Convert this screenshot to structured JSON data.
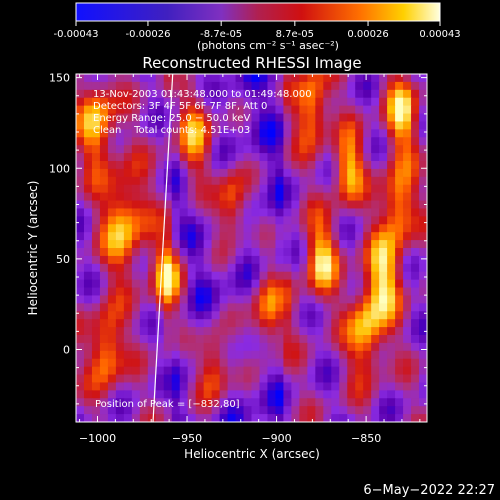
{
  "colorbar": {
    "tick_labels": [
      "-0.00043",
      "-0.00026",
      "-8.7e-05",
      "8.7e-05",
      "0.00026",
      "0.00043"
    ],
    "tick_values": [
      -0.00043,
      -0.00026,
      -8.7e-05,
      8.7e-05,
      0.00026,
      0.00043
    ],
    "range": [
      -0.00043,
      0.00043
    ],
    "unit_label": "(photons cm⁻² s⁻¹ asec⁻²)"
  },
  "chart_data": {
    "type": "heatmap",
    "title": "Reconstructed RHESSI Image",
    "xlabel": "Heliocentric X (arcsec)",
    "ylabel": "Heliocentric Y (arcsec)",
    "xlim": [
      -1012,
      -816
    ],
    "ylim": [
      -40,
      152
    ],
    "x_ticks": [
      -1000,
      -950,
      -900,
      -850
    ],
    "x_tick_labels": [
      "−1000",
      "−950",
      "−900",
      "−850"
    ],
    "y_ticks": [
      0,
      50,
      100,
      150
    ],
    "y_tick_labels": [
      "0",
      "50",
      "100",
      "150"
    ],
    "info_lines": [
      "13-Nov-2003 01:43:48.000 to 01:49:48.000",
      "Detectors: 3F 4F 5F 6F 7F 8F, Att 0",
      "Energy Range: 25.0 − 50.0 keV",
      "Clean    Total counts: 4.51E+03"
    ],
    "peak_label": "Position of Peak = [−832,80]",
    "peak": [
      -832,
      80
    ],
    "limb_line": [
      [
        -969,
        -40
      ],
      [
        -958,
        152
      ]
    ],
    "colormap": [
      "#0000ff",
      "#5a00b0",
      "#8a2be2",
      "#b0307a",
      "#d01414",
      "#ff6000",
      "#ffc000",
      "#ffffc0"
    ]
  },
  "footer": {
    "date_stamp": "6−May−2022 22:27"
  }
}
